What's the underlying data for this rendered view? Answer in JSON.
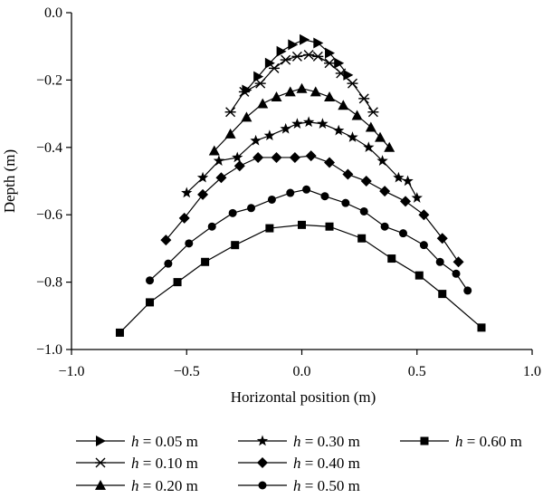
{
  "chart_data": {
    "type": "line",
    "xlabel": "Horizontal position (m)",
    "ylabel": "Depth (m)",
    "xlim": [
      -1.0,
      1.0
    ],
    "ylim": [
      -1.0,
      0.0
    ],
    "x_ticks": [
      -1.0,
      -0.5,
      0.0,
      0.5,
      1.0
    ],
    "y_ticks": [
      0.0,
      -0.2,
      -0.4,
      -0.6,
      -0.8,
      -1.0
    ],
    "x_tick_labels": [
      "−1.0",
      "−0.5",
      "0.0",
      "0.5",
      "1.0"
    ],
    "y_tick_labels": [
      "0.0",
      "−0.2",
      "−0.4",
      "−0.6",
      "−0.8",
      "−1.0"
    ],
    "grid": false,
    "legend_position": "bottom",
    "series": [
      {
        "name": "h = 0.05 m",
        "label_var": "h",
        "label_rest": " = 0.05 m",
        "marker": "triangle-right",
        "x": [
          -0.24,
          -0.19,
          -0.14,
          -0.09,
          -0.04,
          0.01,
          0.07,
          0.12,
          0.16,
          0.2
        ],
        "y": [
          -0.23,
          -0.19,
          -0.15,
          -0.115,
          -0.095,
          -0.08,
          -0.09,
          -0.12,
          -0.15,
          -0.185
        ]
      },
      {
        "name": "h = 0.10 m",
        "label_var": "h",
        "label_rest": " = 0.10 m",
        "marker": "asterisk",
        "x": [
          -0.31,
          -0.25,
          -0.18,
          -0.12,
          -0.07,
          -0.02,
          0.03,
          0.07,
          0.12,
          0.17,
          0.22,
          0.27,
          0.31
        ],
        "y": [
          -0.295,
          -0.235,
          -0.21,
          -0.165,
          -0.14,
          -0.13,
          -0.125,
          -0.13,
          -0.15,
          -0.18,
          -0.21,
          -0.255,
          -0.295
        ]
      },
      {
        "name": "h = 0.20 m",
        "label_var": "h",
        "label_rest": " = 0.20 m",
        "marker": "triangle-up",
        "x": [
          -0.38,
          -0.31,
          -0.24,
          -0.17,
          -0.11,
          -0.05,
          0.0,
          0.06,
          0.12,
          0.18,
          0.24,
          0.3,
          0.34,
          0.38
        ],
        "y": [
          -0.41,
          -0.36,
          -0.31,
          -0.27,
          -0.25,
          -0.235,
          -0.225,
          -0.235,
          -0.25,
          -0.275,
          -0.305,
          -0.34,
          -0.37,
          -0.4
        ]
      },
      {
        "name": "h = 0.30 m",
        "label_var": "h",
        "label_rest": " = 0.30 m",
        "marker": "star",
        "x": [
          -0.5,
          -0.43,
          -0.36,
          -0.28,
          -0.2,
          -0.14,
          -0.07,
          -0.02,
          0.03,
          0.09,
          0.16,
          0.22,
          0.29,
          0.35,
          0.42,
          0.46,
          0.5
        ],
        "y": [
          -0.535,
          -0.49,
          -0.44,
          -0.43,
          -0.38,
          -0.365,
          -0.345,
          -0.33,
          -0.325,
          -0.33,
          -0.35,
          -0.37,
          -0.4,
          -0.44,
          -0.49,
          -0.5,
          -0.55
        ]
      },
      {
        "name": "h = 0.40 m",
        "label_var": "h",
        "label_rest": " = 0.40 m",
        "marker": "diamond",
        "x": [
          -0.59,
          -0.51,
          -0.43,
          -0.35,
          -0.27,
          -0.19,
          -0.11,
          -0.03,
          0.04,
          0.12,
          0.2,
          0.28,
          0.36,
          0.45,
          0.53,
          0.61,
          0.68
        ],
        "y": [
          -0.675,
          -0.61,
          -0.54,
          -0.49,
          -0.455,
          -0.43,
          -0.43,
          -0.43,
          -0.425,
          -0.445,
          -0.48,
          -0.5,
          -0.53,
          -0.56,
          -0.6,
          -0.67,
          -0.74
        ]
      },
      {
        "name": "h = 0.50 m",
        "label_var": "h",
        "label_rest": " = 0.50 m",
        "marker": "circle",
        "x": [
          -0.66,
          -0.58,
          -0.49,
          -0.39,
          -0.3,
          -0.22,
          -0.13,
          -0.05,
          0.02,
          0.1,
          0.19,
          0.27,
          0.36,
          0.44,
          0.53,
          0.6,
          0.67,
          0.72
        ],
        "y": [
          -0.795,
          -0.745,
          -0.685,
          -0.635,
          -0.595,
          -0.58,
          -0.555,
          -0.535,
          -0.525,
          -0.545,
          -0.565,
          -0.59,
          -0.635,
          -0.655,
          -0.69,
          -0.74,
          -0.775,
          -0.825
        ]
      },
      {
        "name": "h = 0.60 m",
        "label_var": "h",
        "label_rest": " = 0.60 m",
        "marker": "square",
        "x": [
          -0.79,
          -0.66,
          -0.54,
          -0.42,
          -0.29,
          -0.14,
          0.0,
          0.12,
          0.26,
          0.39,
          0.51,
          0.61,
          0.78
        ],
        "y": [
          -0.95,
          -0.86,
          -0.8,
          -0.74,
          -0.69,
          -0.64,
          -0.63,
          -0.635,
          -0.67,
          -0.73,
          -0.78,
          -0.835,
          -0.935
        ]
      }
    ]
  }
}
